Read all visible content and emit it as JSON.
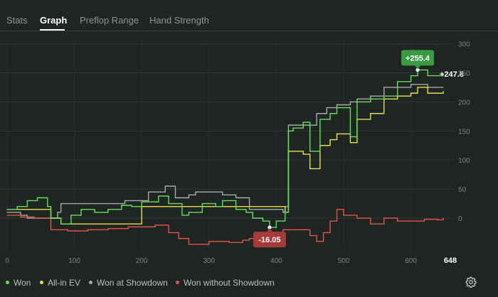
{
  "tabs": [
    {
      "label": "Stats",
      "active": false
    },
    {
      "label": "Graph",
      "active": true
    },
    {
      "label": "Preflop Range",
      "active": false
    },
    {
      "label": "Hand Strength",
      "active": false
    }
  ],
  "chart_data": {
    "type": "line",
    "x_ticks": [
      0,
      100,
      200,
      300,
      400,
      500,
      600
    ],
    "x_max_label": "648",
    "xlim": [
      0,
      648
    ],
    "y_ticks": [
      0,
      50,
      100,
      150,
      200,
      250,
      300
    ],
    "ylim": [
      -50,
      310
    ],
    "grid": true,
    "series": [
      {
        "name": "Won",
        "color": "#66e05a",
        "x": [
          0,
          15,
          30,
          45,
          60,
          65,
          80,
          95,
          110,
          130,
          150,
          170,
          185,
          200,
          225,
          240,
          260,
          270,
          290,
          310,
          320,
          340,
          355,
          365,
          380,
          390,
          400,
          413,
          418,
          425,
          440,
          450,
          465,
          480,
          490,
          510,
          520,
          540,
          560,
          580,
          600,
          610,
          625,
          648
        ],
        "y": [
          15,
          20,
          30,
          35,
          20,
          0,
          -10,
          5,
          15,
          10,
          15,
          22,
          20,
          28,
          38,
          25,
          5,
          10,
          25,
          20,
          30,
          15,
          10,
          0,
          -5,
          -16,
          -5,
          10,
          150,
          155,
          165,
          115,
          170,
          180,
          190,
          140,
          200,
          205,
          210,
          235,
          245,
          255,
          245,
          248
        ]
      },
      {
        "name": "All-in EV",
        "color": "#e5e04b",
        "x": [
          0,
          65,
          80,
          200,
          413,
          418,
          440,
          450,
          465,
          480,
          490,
          510,
          520,
          540,
          560,
          580,
          600,
          610,
          625,
          648
        ],
        "y": [
          15,
          0,
          -10,
          20,
          10,
          115,
          110,
          85,
          125,
          135,
          145,
          130,
          170,
          180,
          205,
          210,
          215,
          225,
          215,
          218
        ]
      },
      {
        "name": "Won at Showdown",
        "color": "#a6aaa8",
        "x": [
          0,
          20,
          30,
          65,
          75,
          80,
          150,
          175,
          210,
          235,
          250,
          270,
          280,
          310,
          320,
          340,
          360,
          410,
          413,
          418,
          460,
          475,
          490,
          510,
          520,
          540,
          560,
          600,
          625,
          648
        ],
        "y": [
          10,
          5,
          0,
          0,
          10,
          25,
          25,
          30,
          45,
          55,
          35,
          40,
          45,
          45,
          40,
          35,
          15,
          10,
          20,
          160,
          180,
          190,
          195,
          200,
          205,
          210,
          225,
          230,
          225,
          225
        ]
      },
      {
        "name": "Won without Showdown",
        "color": "#e0534e",
        "x": [
          0,
          20,
          40,
          65,
          90,
          120,
          150,
          180,
          220,
          240,
          255,
          270,
          300,
          330,
          350,
          360,
          380,
          400,
          410,
          440,
          450,
          460,
          470,
          480,
          490,
          500,
          520,
          540,
          560,
          580,
          600,
          620,
          640,
          648
        ],
        "y": [
          5,
          2,
          0,
          -20,
          -22,
          -20,
          -18,
          -15,
          -12,
          -25,
          -35,
          -45,
          -40,
          -42,
          -38,
          -35,
          -30,
          -25,
          -20,
          -20,
          -30,
          -40,
          -25,
          -5,
          15,
          5,
          0,
          -10,
          0,
          -5,
          -5,
          -2,
          -3,
          0
        ]
      }
    ],
    "annotations": [
      {
        "label": "+255.4",
        "x": 610,
        "y": 255,
        "kind": "max",
        "color": "#3b9b43"
      },
      {
        "label": "-16.05",
        "x": 390,
        "y": -16,
        "kind": "min",
        "color": "#a53c39"
      },
      {
        "label": "+247.8",
        "x": 648,
        "y": 248,
        "kind": "end"
      }
    ]
  },
  "legend": {
    "items": [
      {
        "label": "Won",
        "color": "#66e05a"
      },
      {
        "label": "All-in EV",
        "color": "#e5e04b"
      },
      {
        "label": "Won at Showdown",
        "color": "#a6aaa8"
      },
      {
        "label": "Won without Showdown",
        "color": "#e0534e"
      }
    ]
  },
  "settings": {
    "icon": "gear-icon"
  }
}
